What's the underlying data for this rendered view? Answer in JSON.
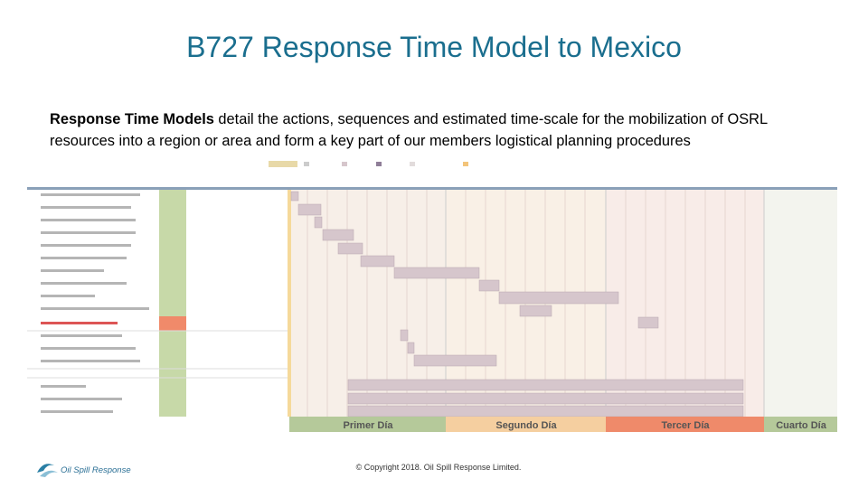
{
  "header": {
    "title": "B727 Response Time Model to Mexico"
  },
  "intro": {
    "bold": "Response Time Models",
    "text": " detail the actions, sequences and estimated time-scale for the mobilization of OSRL resources into a region or area and form a key part of our members logistical planning procedures"
  },
  "gantt": {
    "days": [
      "Primer Día",
      "Segundo Día",
      "Tercer Día",
      "Cuarto Día"
    ]
  },
  "footer": {
    "copyright": "© Copyright 2018. Oil Spill Response Limited."
  },
  "logo": {
    "text": "Oil Spill Response"
  }
}
